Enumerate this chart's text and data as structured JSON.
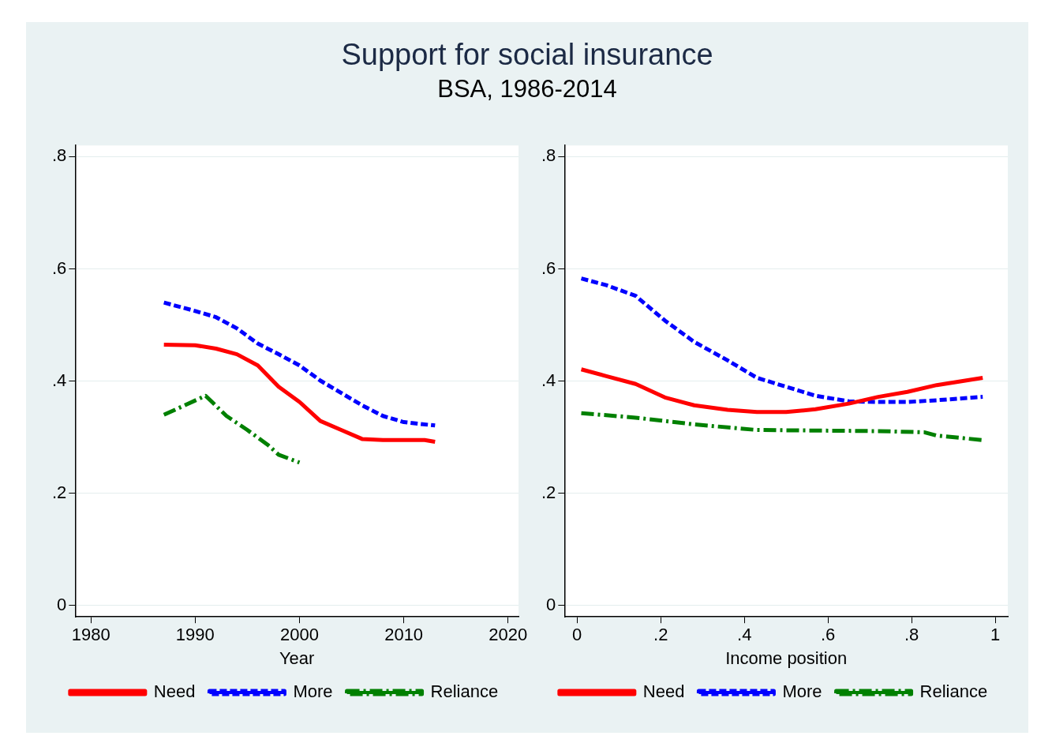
{
  "chart_data": [
    {
      "type": "line",
      "title": "Support for social insurance",
      "subtitle": "BSA, 1986-2014",
      "xlabel": "Year",
      "xlim": [
        1978.5,
        2021
      ],
      "xticks": [
        1980,
        1990,
        2000,
        2010,
        2020
      ],
      "ylim": [
        -0.02,
        0.82
      ],
      "yticks": [
        0,
        {
          "value": 0.2,
          "label": ".2"
        },
        {
          "value": 0.4,
          "label": ".4"
        },
        {
          "value": 0.6,
          "label": ".6"
        },
        {
          "value": 0.8,
          "label": ".8"
        }
      ],
      "grid": "y",
      "legend": "bottom",
      "marker": "none",
      "series": [
        {
          "name": "Need",
          "color": "#ff0000",
          "line_style": "solid",
          "x": [
            1987,
            1990,
            1992,
            1994,
            1996,
            1998,
            2000,
            2002,
            2004,
            2006,
            2008,
            2010,
            2012,
            2013
          ],
          "values": [
            0.465,
            0.464,
            0.458,
            0.448,
            0.428,
            0.39,
            0.363,
            0.329,
            0.313,
            0.297,
            0.295,
            0.295,
            0.295,
            0.292
          ]
        },
        {
          "name": "More",
          "color": "#0000ff",
          "line_style": "dashed",
          "x": [
            1987,
            1990,
            1992,
            1994,
            1996,
            1998,
            2000,
            2002,
            2004,
            2006,
            2008,
            2010,
            2013
          ],
          "values": [
            0.54,
            0.525,
            0.514,
            0.494,
            0.467,
            0.448,
            0.428,
            0.401,
            0.379,
            0.357,
            0.338,
            0.327,
            0.321
          ]
        },
        {
          "name": "Reliance",
          "color": "#008000",
          "line_style": "dashdot",
          "x": [
            1987,
            1991,
            1993,
            1995,
            1997,
            1998,
            2000
          ],
          "values": [
            0.34,
            0.374,
            0.338,
            0.313,
            0.286,
            0.269,
            0.255
          ]
        }
      ]
    },
    {
      "type": "line",
      "xlabel": "Income position",
      "xlim": [
        -0.03,
        1.03
      ],
      "xticks": [
        0,
        {
          "value": 0.2,
          "label": ".2"
        },
        {
          "value": 0.4,
          "label": ".4"
        },
        {
          "value": 0.6,
          "label": ".6"
        },
        {
          "value": 0.8,
          "label": ".8"
        },
        1
      ],
      "ylim": [
        -0.02,
        0.82
      ],
      "yticks": [
        0,
        {
          "value": 0.2,
          "label": ".2"
        },
        {
          "value": 0.4,
          "label": ".4"
        },
        {
          "value": 0.6,
          "label": ".6"
        },
        {
          "value": 0.8,
          "label": ".8"
        }
      ],
      "grid": "y",
      "legend": "bottom",
      "marker": "none",
      "series": [
        {
          "name": "Need",
          "color": "#ff0000",
          "line_style": "solid",
          "x": [
            0.01,
            0.07,
            0.14,
            0.21,
            0.28,
            0.36,
            0.43,
            0.5,
            0.57,
            0.65,
            0.72,
            0.79,
            0.86,
            0.97
          ],
          "values": [
            0.421,
            0.409,
            0.395,
            0.371,
            0.357,
            0.349,
            0.345,
            0.345,
            0.35,
            0.36,
            0.372,
            0.381,
            0.393,
            0.406
          ]
        },
        {
          "name": "More",
          "color": "#0000ff",
          "line_style": "dashed",
          "x": [
            0.01,
            0.07,
            0.14,
            0.21,
            0.28,
            0.36,
            0.43,
            0.5,
            0.57,
            0.65,
            0.72,
            0.79,
            0.86,
            0.97
          ],
          "values": [
            0.583,
            0.571,
            0.552,
            0.508,
            0.47,
            0.437,
            0.406,
            0.39,
            0.374,
            0.364,
            0.363,
            0.363,
            0.366,
            0.372
          ]
        },
        {
          "name": "Reliance",
          "color": "#008000",
          "line_style": "dashdot",
          "x": [
            0.01,
            0.14,
            0.28,
            0.43,
            0.57,
            0.72,
            0.83,
            0.86,
            0.97
          ],
          "values": [
            0.343,
            0.335,
            0.323,
            0.313,
            0.312,
            0.311,
            0.309,
            0.303,
            0.295
          ]
        }
      ]
    }
  ]
}
